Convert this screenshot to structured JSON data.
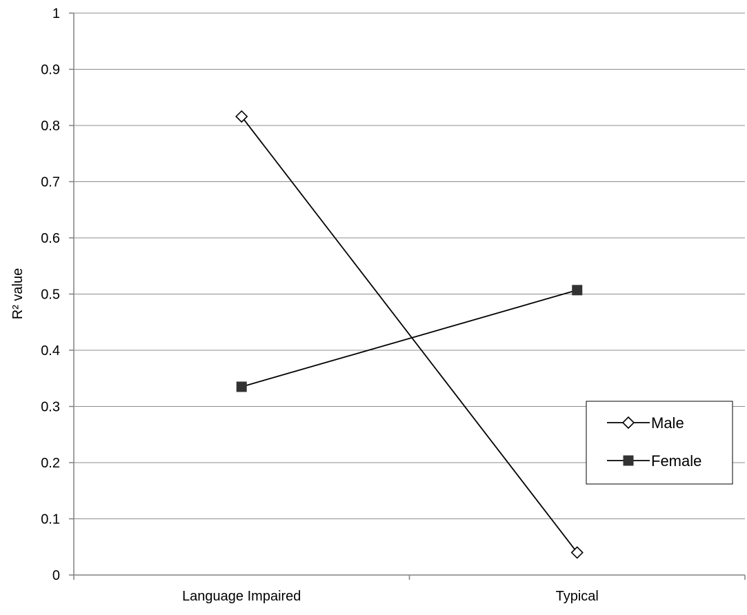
{
  "chart_data": {
    "type": "line",
    "title": "",
    "xlabel": "",
    "ylabel": "R² value",
    "categories": [
      "Language Impaired",
      "Typical"
    ],
    "ylim": [
      0,
      1
    ],
    "yticks": [
      0,
      0.1,
      0.2,
      0.3,
      0.4,
      0.5,
      0.6,
      0.7,
      0.8,
      0.9,
      1
    ],
    "ytick_labels": [
      "0",
      "0.1",
      "0.2",
      "0.3",
      "0.4",
      "0.5",
      "0.6",
      "0.7",
      "0.8",
      "0.9",
      "1"
    ],
    "grid": "horizontal",
    "legend_position": "right",
    "series": [
      {
        "name": "Male",
        "values": [
          0.816,
          0.04
        ],
        "marker": "diamond-open",
        "color": "#000000"
      },
      {
        "name": "Female",
        "values": [
          0.335,
          0.507
        ],
        "marker": "square-filled",
        "color": "#333333"
      }
    ]
  }
}
